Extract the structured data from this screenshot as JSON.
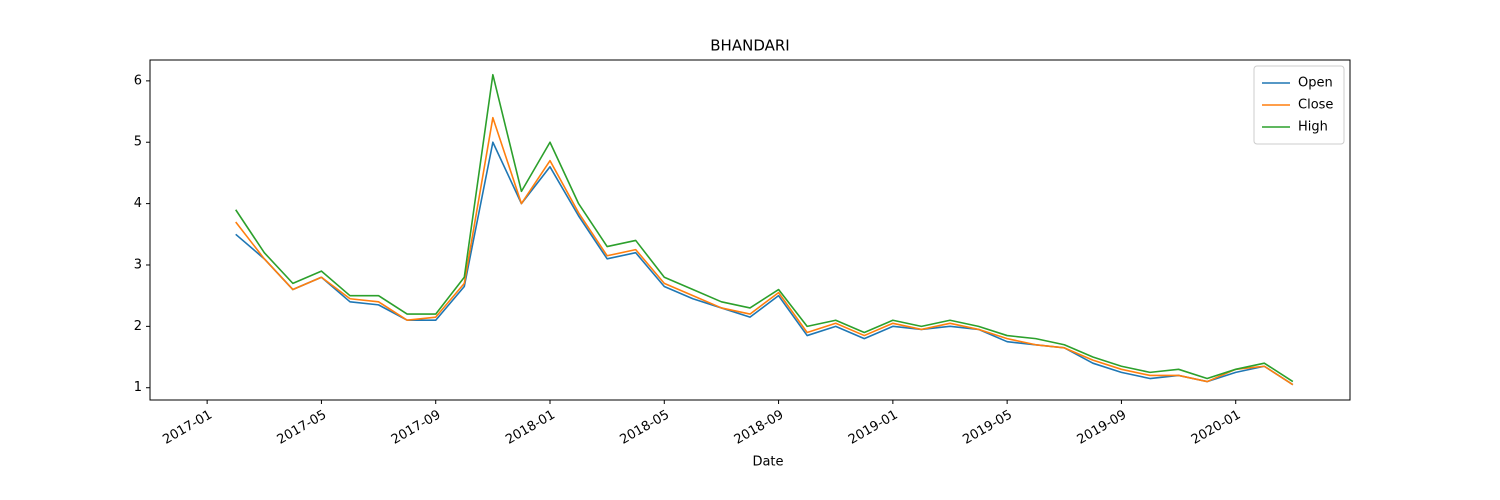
{
  "chart_data": {
    "type": "line",
    "title": "BHANDARI",
    "xlabel": "Date",
    "x": [
      "2017-02",
      "2017-03",
      "2017-04",
      "2017-05",
      "2017-06",
      "2017-07",
      "2017-08",
      "2017-09",
      "2017-10",
      "2017-11",
      "2017-12",
      "2018-01",
      "2018-02",
      "2018-03",
      "2018-04",
      "2018-05",
      "2018-06",
      "2018-07",
      "2018-08",
      "2018-09",
      "2018-10",
      "2018-11",
      "2018-12",
      "2019-01",
      "2019-02",
      "2019-03",
      "2019-04",
      "2019-05",
      "2019-06",
      "2019-07",
      "2019-08",
      "2019-09",
      "2019-10",
      "2019-11",
      "2019-12",
      "2020-01",
      "2020-02",
      "2020-03"
    ],
    "series": [
      {
        "name": "Open",
        "color": "#1f77b4",
        "values": [
          3.5,
          3.1,
          2.6,
          2.8,
          2.4,
          2.35,
          2.1,
          2.1,
          2.65,
          5.0,
          4.0,
          4.6,
          3.8,
          3.1,
          3.2,
          2.65,
          2.45,
          2.3,
          2.15,
          2.5,
          1.85,
          2.0,
          1.8,
          2.0,
          1.95,
          2.0,
          1.95,
          1.75,
          1.7,
          1.65,
          1.4,
          1.25,
          1.15,
          1.2,
          1.1,
          1.25,
          1.35,
          1.05
        ]
      },
      {
        "name": "Close",
        "color": "#ff7f0e",
        "values": [
          3.7,
          3.1,
          2.6,
          2.8,
          2.45,
          2.4,
          2.1,
          2.15,
          2.7,
          5.4,
          4.0,
          4.7,
          3.85,
          3.15,
          3.25,
          2.7,
          2.5,
          2.3,
          2.2,
          2.55,
          1.9,
          2.05,
          1.85,
          2.05,
          1.95,
          2.05,
          1.95,
          1.8,
          1.7,
          1.65,
          1.45,
          1.3,
          1.2,
          1.2,
          1.1,
          1.3,
          1.35,
          1.05
        ]
      },
      {
        "name": "High",
        "color": "#2ca02c",
        "values": [
          3.9,
          3.2,
          2.7,
          2.9,
          2.5,
          2.5,
          2.2,
          2.2,
          2.8,
          6.1,
          4.2,
          5.0,
          4.0,
          3.3,
          3.4,
          2.8,
          2.6,
          2.4,
          2.3,
          2.6,
          2.0,
          2.1,
          1.9,
          2.1,
          2.0,
          2.1,
          2.0,
          1.85,
          1.8,
          1.7,
          1.5,
          1.35,
          1.25,
          1.3,
          1.15,
          1.3,
          1.4,
          1.1
        ]
      }
    ],
    "xlim": [
      "2016-11",
      "2020-05"
    ],
    "xticks": [
      "2017-01",
      "2017-05",
      "2017-09",
      "2018-01",
      "2018-05",
      "2018-09",
      "2019-01",
      "2019-05",
      "2019-09",
      "2020-01"
    ],
    "ylim": [
      0.8,
      6.34
    ],
    "yticks": [
      1,
      2,
      3,
      4,
      5,
      6
    ],
    "legend": "upper right",
    "grid": false
  }
}
